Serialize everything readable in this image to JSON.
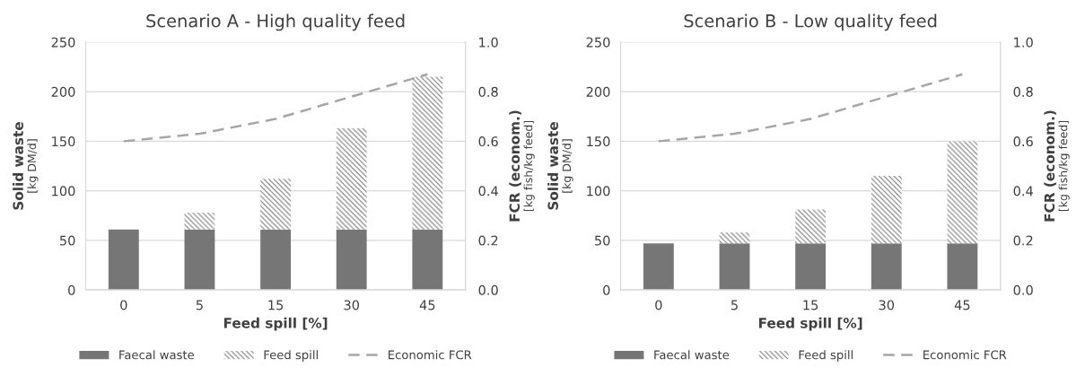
{
  "chart_data": [
    {
      "type": "bar",
      "title": "Scenario A - High quality feed",
      "xlabel": "Feed spill [%]",
      "ylabel": "Solid waste\n[kg DM/d]",
      "y2label": "FCR (econom.)\n[kg fish/kg feed]",
      "categories": [
        "0",
        "5",
        "15",
        "30",
        "45"
      ],
      "stacked": true,
      "series": [
        {
          "name": "Faecal waste",
          "color": "#767676",
          "values": [
            61,
            61,
            61,
            61,
            61
          ]
        },
        {
          "name": "Feed spill",
          "color": "#808080",
          "values": [
            0,
            17,
            51,
            102,
            154
          ]
        },
        {
          "name": "Economic FCR",
          "type": "line",
          "axis": "y2",
          "color": "#a6a6a6",
          "values": [
            0.6,
            0.63,
            0.69,
            0.78,
            0.87
          ]
        }
      ],
      "ylim": [
        0,
        250
      ],
      "yticks": [
        0,
        50,
        100,
        150,
        200,
        250
      ],
      "y2lim": [
        0,
        1.0
      ],
      "y2ticks": [
        {
          "value": 0,
          "label": "0.0"
        },
        {
          "value": 0.2,
          "label": "0.2"
        },
        {
          "value": 0.4,
          "label": "0.4"
        },
        {
          "value": 0.6,
          "label": "0.6"
        },
        {
          "value": 0.8,
          "label": "0.8"
        },
        {
          "value": 1.0,
          "label": "1.0"
        }
      ],
      "grid": "y",
      "legend": "bottom",
      "line_style": "dashed"
    },
    {
      "type": "bar",
      "title": "Scenario B - Low quality feed",
      "xlabel": "Feed spill [%]",
      "ylabel": "Solid waste\n[kg DM/d]",
      "y2label": "FCR (econom.)\n[kg fish/kg feed]",
      "categories": [
        "0",
        "5",
        "15",
        "30",
        "45"
      ],
      "stacked": true,
      "series": [
        {
          "name": "Faecal waste",
          "color": "#767676",
          "values": [
            47,
            47,
            47,
            47,
            47
          ]
        },
        {
          "name": "Feed spill",
          "color": "#808080",
          "values": [
            0,
            11,
            34,
            68,
            103
          ]
        },
        {
          "name": "Economic FCR",
          "type": "line",
          "axis": "y2",
          "color": "#a6a6a6",
          "values": [
            0.6,
            0.63,
            0.69,
            0.78,
            0.87
          ]
        }
      ],
      "ylim": [
        0,
        250
      ],
      "yticks": [
        0,
        50,
        100,
        150,
        200,
        250
      ],
      "y2lim": [
        0,
        1.0
      ],
      "y2ticks": [
        {
          "value": 0,
          "label": "0.0"
        },
        {
          "value": 0.2,
          "label": "0.2"
        },
        {
          "value": 0.4,
          "label": "0.4"
        },
        {
          "value": 0.6,
          "label": "0.6"
        },
        {
          "value": 0.8,
          "label": "0.8"
        },
        {
          "value": 1.0,
          "label": "1.0"
        }
      ],
      "grid": "y",
      "legend": "bottom",
      "line_style": "dashed"
    }
  ]
}
